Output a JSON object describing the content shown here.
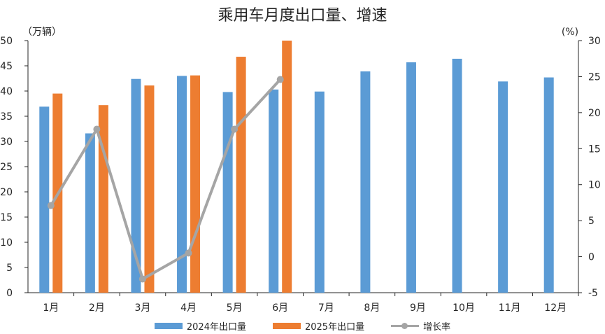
{
  "chart_data": {
    "type": "bar",
    "title": "乘用车月度出口量、增速",
    "categories": [
      "1月",
      "2月",
      "3月",
      "4月",
      "5月",
      "6月",
      "7月",
      "8月",
      "9月",
      "10月",
      "11月",
      "12月"
    ],
    "series": [
      {
        "name": "2024年出口量",
        "type": "bar",
        "axis": "left",
        "color": "#5b9bd5",
        "values": [
          36.9,
          31.6,
          42.4,
          43.0,
          39.8,
          40.3,
          39.9,
          43.9,
          45.7,
          46.4,
          41.9,
          42.7
        ]
      },
      {
        "name": "2025年出口量",
        "type": "bar",
        "axis": "left",
        "color": "#ed7d31",
        "values": [
          39.5,
          37.2,
          41.1,
          43.1,
          46.8,
          50.0,
          null,
          null,
          null,
          null,
          null,
          null
        ]
      },
      {
        "name": "增长率",
        "type": "line",
        "axis": "right",
        "color": "#a5a5a5",
        "values": [
          7.1,
          17.7,
          -3.1,
          0.5,
          17.7,
          24.6,
          null,
          null,
          null,
          null,
          null,
          null
        ]
      }
    ],
    "ylabel_left": "（万辆）",
    "ylabel_right": "(%)",
    "ylim_left": [
      0,
      50
    ],
    "ylim_right": [
      -5,
      30
    ],
    "yticks_left": [
      0,
      5,
      10,
      15,
      20,
      25,
      30,
      35,
      40,
      45,
      50
    ],
    "yticks_right": [
      -5,
      0,
      5,
      10,
      15,
      20,
      25,
      30
    ],
    "grid": false,
    "legend_position": "bottom"
  }
}
